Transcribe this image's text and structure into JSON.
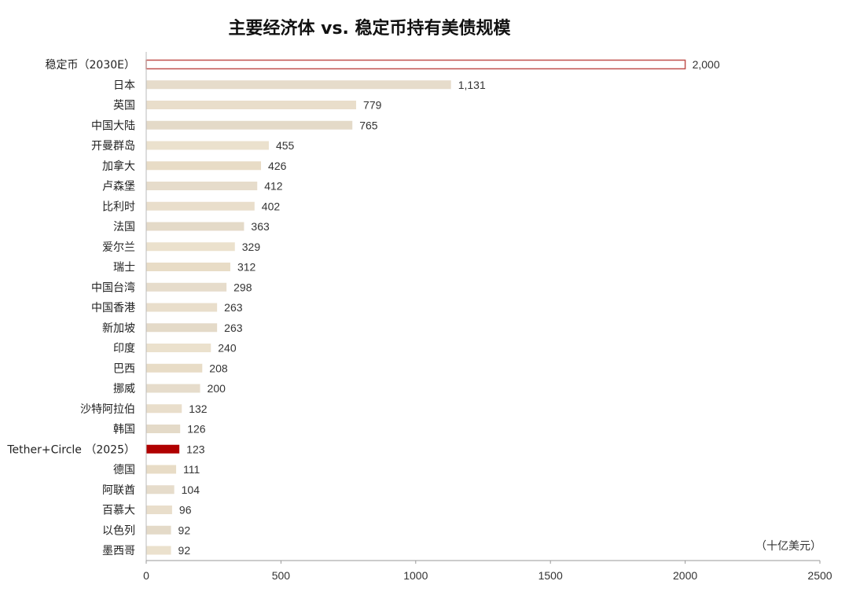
{
  "chart_data": {
    "type": "bar",
    "orientation": "horizontal",
    "title": "主要经济体 vs. 稳定币持有美债规模",
    "unit_label": "（十亿美元）",
    "categories": [
      "稳定币（2030E）",
      "日本",
      "英国",
      "中国大陆",
      "开曼群岛",
      "加拿大",
      "卢森堡",
      "比利时",
      "法国",
      "爱尔兰",
      "瑞士",
      "中国台湾",
      "中国香港",
      "新加坡",
      "印度",
      "巴西",
      "挪威",
      "沙特阿拉伯",
      "韩国",
      "Tether+Circle （2025）",
      "德国",
      "阿联酋",
      "百慕大",
      "以色列",
      "墨西哥"
    ],
    "values": [
      2000,
      1131,
      779,
      765,
      455,
      426,
      412,
      402,
      363,
      329,
      312,
      298,
      263,
      263,
      240,
      208,
      200,
      132,
      126,
      123,
      111,
      104,
      96,
      92,
      92
    ],
    "value_labels": [
      "2,000",
      "1,131",
      "779",
      "765",
      "455",
      "426",
      "412",
      "402",
      "363",
      "329",
      "312",
      "298",
      "263",
      "263",
      "240",
      "208",
      "200",
      "132",
      "126",
      "123",
      "111",
      "104",
      "96",
      "92",
      "92"
    ],
    "xlim": [
      0,
      2500
    ],
    "x_ticks": [
      0,
      500,
      1000,
      1500,
      2000,
      2500
    ],
    "x_tick_labels": [
      "0",
      "500",
      "1000",
      "1500",
      "2000",
      "2500"
    ],
    "grid": false,
    "highlight": {
      "outline_category": "稳定币（2030E）",
      "filled_category": "Tether+Circle （2025）"
    },
    "colors": {
      "default_bar": "#e8dcc6",
      "outline_bar": "#c0504d",
      "highlight_bar": "#b00000",
      "axis": "#999999"
    }
  }
}
